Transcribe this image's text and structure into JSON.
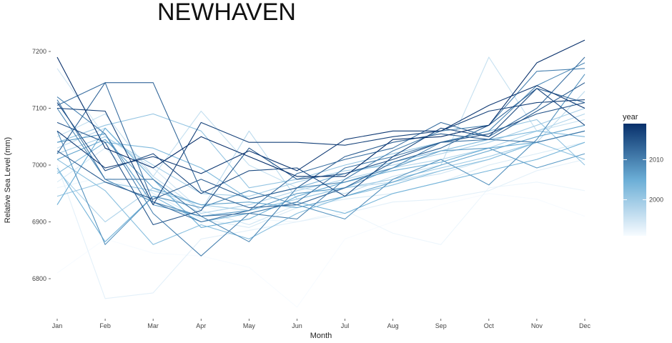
{
  "chart_data": {
    "type": "line",
    "title": "NEWHAVEN",
    "xlabel": "Month",
    "ylabel": "Relative Sea Level (mm)",
    "categories": [
      "Jan",
      "Feb",
      "Mar",
      "Apr",
      "May",
      "Jun",
      "Jul",
      "Aug",
      "Sep",
      "Oct",
      "Nov",
      "Dec"
    ],
    "yticks": [
      6800,
      6900,
      7000,
      7100,
      7200
    ],
    "ylim": [
      6740,
      7225
    ],
    "grid": false,
    "legend": {
      "title": "year",
      "position": "right",
      "type": "colorbar",
      "range": [
        1991,
        2019
      ],
      "ticks": [
        2000,
        2010
      ],
      "color_low": "#f7fbff",
      "color_high": "#08306b"
    },
    "series": [
      {
        "year": 1991,
        "values": [
          6810,
          6870,
          6845,
          6840,
          6820,
          6750,
          6870,
          6900,
          6930,
          6950,
          6940,
          6910
        ]
      },
      {
        "year": 1992,
        "values": [
          6960,
          6980,
          6945,
          6930,
          6905,
          6900,
          6920,
          6880,
          6860,
          6960,
          6970,
          6955
        ]
      },
      {
        "year": 1993,
        "values": [
          7000,
          6765,
          6775,
          6870,
          6885,
          6900,
          6915,
          6935,
          6940,
          6955,
          6990,
          7010
        ]
      },
      {
        "year": 1994,
        "values": [
          6970,
          7030,
          6950,
          6905,
          6890,
          6925,
          6940,
          6950,
          6970,
          7000,
          7020,
          7040
        ]
      },
      {
        "year": 1995,
        "values": [
          7170,
          7050,
          6995,
          6920,
          6895,
          6930,
          6960,
          6970,
          6985,
          7010,
          7040,
          7060
        ]
      },
      {
        "year": 1996,
        "values": [
          7050,
          7090,
          6980,
          7095,
          7000,
          6960,
          6950,
          6980,
          7000,
          7190,
          7060,
          7080
        ]
      },
      {
        "year": 1997,
        "values": [
          7030,
          7065,
          6980,
          6920,
          7060,
          6940,
          6960,
          6970,
          6990,
          7010,
          7040,
          7130
        ]
      },
      {
        "year": 1998,
        "values": [
          6990,
          6900,
          6960,
          6915,
          6930,
          6955,
          6975,
          6995,
          7010,
          7030,
          7060,
          7090
        ]
      },
      {
        "year": 1999,
        "values": [
          7020,
          7050,
          7000,
          6950,
          6945,
          6970,
          6990,
          7000,
          7020,
          7040,
          7070,
          7100
        ]
      },
      {
        "year": 2000,
        "values": [
          6945,
          6970,
          6955,
          6930,
          6920,
          6940,
          6960,
          6975,
          6995,
          7015,
          7040,
          7060
        ]
      },
      {
        "year": 2001,
        "values": [
          7040,
          7070,
          7090,
          7060,
          6960,
          6975,
          7000,
          7020,
          7040,
          7060,
          7080,
          7000
        ]
      },
      {
        "year": 2002,
        "values": [
          7010,
          6955,
          6860,
          6895,
          6870,
          6915,
          6945,
          6965,
          6990,
          7010,
          7040,
          7010
        ]
      },
      {
        "year": 2003,
        "values": [
          6985,
          7040,
          7030,
          6995,
          6940,
          6960,
          6985,
          7005,
          7025,
          7045,
          7060,
          7050
        ]
      },
      {
        "year": 2004,
        "values": [
          6995,
          6865,
          6945,
          6900,
          6915,
          6935,
          6915,
          6950,
          6970,
          6990,
          7010,
          7040
        ]
      },
      {
        "year": 2005,
        "values": [
          6930,
          7065,
          6975,
          6890,
          6905,
          6945,
          6970,
          6990,
          7005,
          7030,
          7040,
          7060
        ]
      },
      {
        "year": 2006,
        "values": [
          7010,
          7045,
          6960,
          6930,
          6935,
          6925,
          6945,
          6970,
          7000,
          7025,
          7050,
          7070
        ]
      },
      {
        "year": 2007,
        "values": [
          7040,
          7055,
          6930,
          6910,
          6920,
          6950,
          6960,
          6995,
          7025,
          7030,
          6995,
          7020
        ]
      },
      {
        "year": 2008,
        "values": [
          7060,
          6860,
          6945,
          6925,
          6955,
          6930,
          6905,
          6975,
          7010,
          6965,
          7045,
          7160
        ]
      },
      {
        "year": 2009,
        "values": [
          7100,
          6975,
          6935,
          6910,
          6865,
          6960,
          6970,
          6995,
          7040,
          7060,
          7140,
          7180
        ]
      },
      {
        "year": 2010,
        "values": [
          7120,
          7055,
          6915,
          6840,
          6915,
          6905,
          6975,
          7025,
          7060,
          7070,
          7165,
          7170
        ]
      },
      {
        "year": 2011,
        "values": [
          7115,
          6975,
          6975,
          6910,
          6915,
          6935,
          6995,
          7015,
          7040,
          7045,
          7040,
          7060
        ]
      },
      {
        "year": 2012,
        "values": [
          7105,
          7145,
          6935,
          6900,
          6920,
          6985,
          7010,
          7030,
          7075,
          7050,
          7100,
          7190
        ]
      },
      {
        "year": 2013,
        "values": [
          7020,
          7145,
          7145,
          6955,
          6925,
          6930,
          6960,
          7005,
          7030,
          7070,
          7135,
          7110
        ]
      },
      {
        "year": 2014,
        "values": [
          7025,
          6970,
          6940,
          6975,
          6940,
          6960,
          7015,
          7040,
          7055,
          7045,
          7095,
          7145
        ]
      },
      {
        "year": 2015,
        "values": [
          7075,
          7040,
          6895,
          6920,
          7030,
          6975,
          6985,
          7010,
          7040,
          7055,
          7090,
          7110
        ]
      },
      {
        "year": 2016,
        "values": [
          7110,
          6990,
          7020,
          6950,
          6990,
          6995,
          6945,
          7015,
          7065,
          7050,
          7135,
          7070
        ]
      },
      {
        "year": 2017,
        "values": [
          7100,
          7095,
          6930,
          7075,
          7040,
          7040,
          7035,
          7050,
          7060,
          7095,
          7110,
          7115
        ]
      },
      {
        "year": 2018,
        "values": [
          7060,
          6995,
          7015,
          6985,
          7025,
          6990,
          7045,
          7060,
          7060,
          7105,
          7140,
          7100
        ]
      },
      {
        "year": 2019,
        "values": [
          7190,
          7030,
          6995,
          7050,
          7015,
          6980,
          6980,
          7045,
          7050,
          7070,
          7180,
          7220
        ]
      }
    ]
  }
}
